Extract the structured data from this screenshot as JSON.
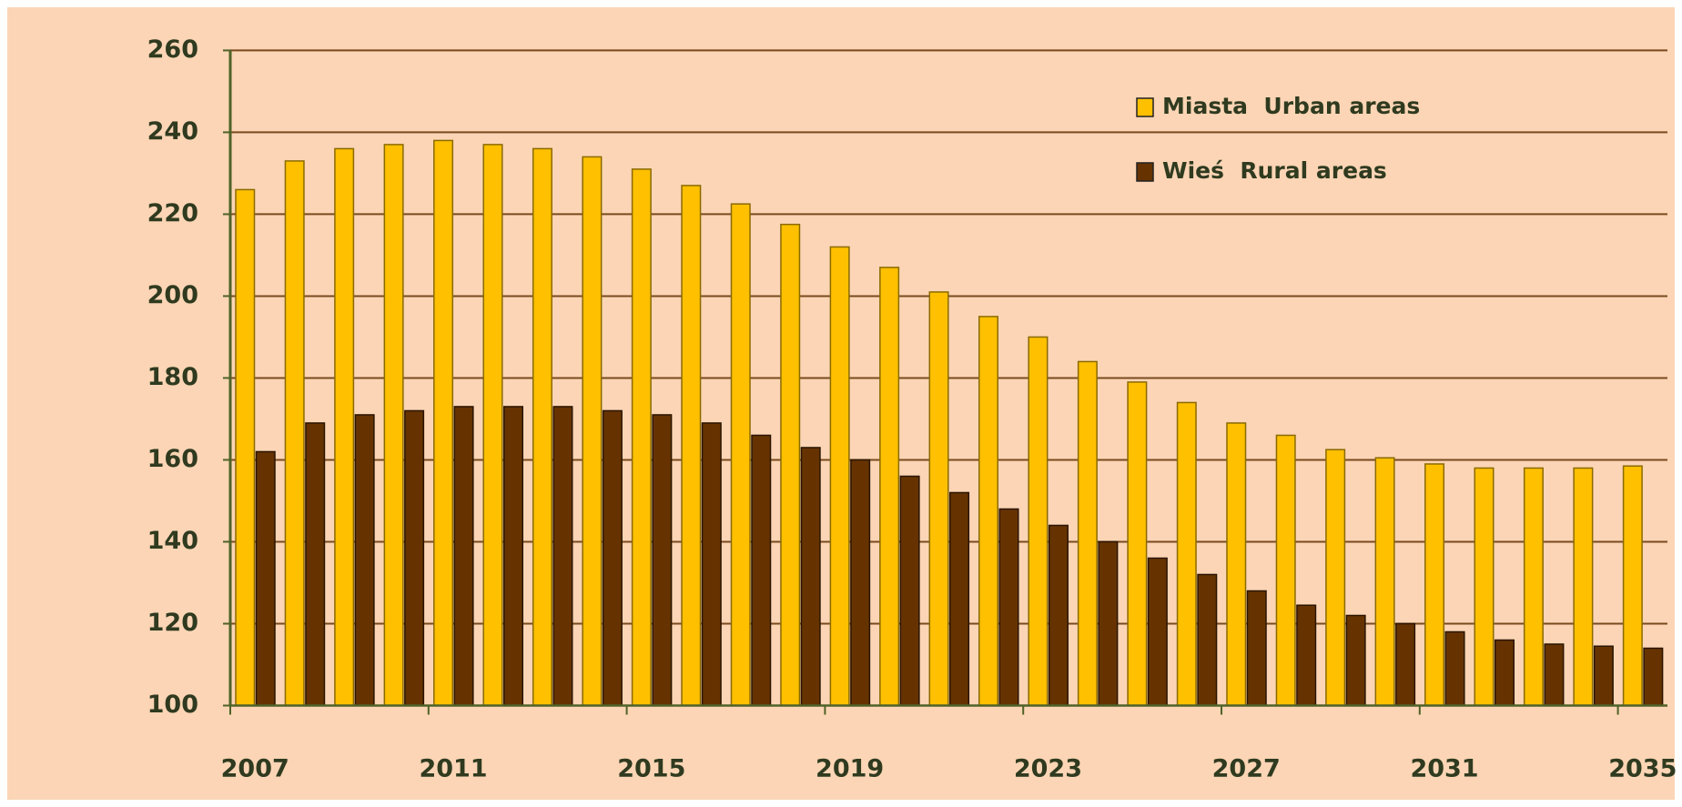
{
  "chart_data": {
    "type": "bar",
    "categories": [
      "2007",
      null,
      null,
      null,
      "2011",
      null,
      null,
      null,
      "2015",
      null,
      null,
      null,
      "2019",
      null,
      null,
      null,
      "2023",
      null,
      null,
      null,
      "2027",
      null,
      null,
      null,
      "2031",
      null,
      null,
      null,
      "2035"
    ],
    "series": [
      {
        "name": "Miasta  Urban areas",
        "color": "#ffc000",
        "values": [
          226,
          233,
          236,
          237,
          238,
          237,
          236,
          234,
          231,
          227,
          222.5,
          217.5,
          212,
          207,
          201,
          195,
          190,
          184,
          179,
          174,
          169,
          166,
          162.5,
          160.5,
          159,
          158,
          158,
          158,
          158.5
        ]
      },
      {
        "name": "Wieś  Rural areas",
        "color": "#663300",
        "values": [
          162,
          169,
          171,
          172,
          173,
          173,
          173,
          172,
          171,
          169,
          166,
          163,
          160,
          156,
          152,
          148,
          144,
          140,
          136,
          132,
          128,
          124.5,
          122,
          120,
          118,
          116,
          115,
          114.5,
          114
        ]
      }
    ],
    "ylim": [
      100,
      260
    ],
    "yticks": [
      100,
      120,
      140,
      160,
      180,
      200,
      220,
      240,
      260
    ],
    "grid": true,
    "legend": "top-right"
  }
}
